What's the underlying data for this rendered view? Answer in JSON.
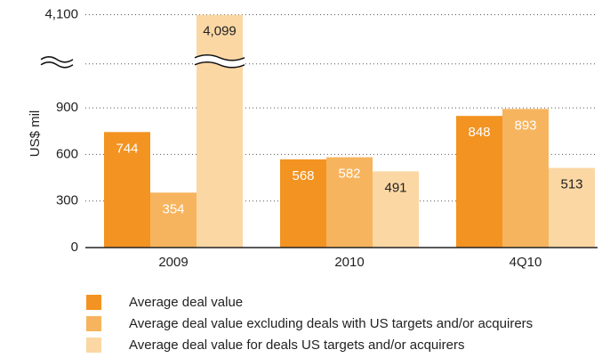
{
  "chart_data": {
    "type": "bar",
    "y_label": "US$ mil",
    "categories": [
      "2009",
      "2010",
      "4Q10"
    ],
    "series": [
      {
        "name": "Average deal value",
        "color": "#f39321",
        "label_color": "#ffffff",
        "values": [
          744,
          568,
          848
        ]
      },
      {
        "name": "Average deal value excluding deals with US targets and/or acquirers",
        "color": "#f7b45e",
        "label_color": "#ffffff",
        "values": [
          354,
          582,
          893
        ]
      },
      {
        "name": "Average deal value for deals US targets and/or acquirers",
        "color": "#fbd7a4",
        "label_color": "#222222",
        "values": [
          4099,
          491,
          513
        ],
        "value_labels": [
          "4,099",
          "491",
          "513"
        ]
      }
    ],
    "ylim": [
      0,
      4100
    ],
    "yticks": [
      0,
      300,
      600,
      900,
      {
        "value": 4100,
        "label": "4,100"
      }
    ],
    "axis_break": [
      1200,
      3800
    ],
    "grid": true,
    "legend": "bottom-left"
  }
}
